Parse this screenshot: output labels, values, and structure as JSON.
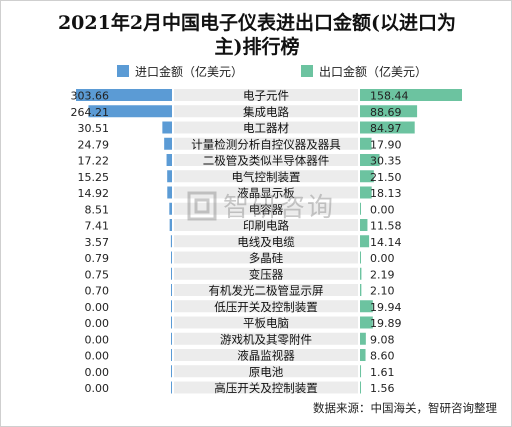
{
  "title_line1": "2021年2月中国电子仪表进出口金额(以进口为",
  "title_line2": "主)排行榜",
  "legend": {
    "import_label": "进口金额（亿美元）",
    "export_label": "出口金额（亿美元）"
  },
  "colors": {
    "import": "#5b9bd5",
    "export": "#6cc3a0",
    "category_bg": "#ececec"
  },
  "watermark_text": "智研咨询",
  "watermark_icon": "zhiyan-logo-icon",
  "source": "数据来源：中国海关，智研咨询整理",
  "chart_data": {
    "type": "bar",
    "title": "2021年2月中国电子仪表进出口金额(以进口为主)排行榜",
    "categories": [
      "电子元件",
      "集成电路",
      "电工器材",
      "计量检测分析自控仪器及器具",
      "二极管及类似半导体器件",
      "电气控制装置",
      "液晶显示板",
      "电容器",
      "印刷电路",
      "电线及电缆",
      "多晶硅",
      "变压器",
      "有机发光二极管显示屏",
      "低压开关及控制装置",
      "平板电脑",
      "游戏机及其零附件",
      "液晶监视器",
      "原电池",
      "高压开关及控制装置"
    ],
    "series": [
      {
        "name": "进口金额（亿美元）",
        "values": [
          303.66,
          264.21,
          30.51,
          24.79,
          17.22,
          15.25,
          14.92,
          8.51,
          7.41,
          3.57,
          0.79,
          0.75,
          0.7,
          0.0,
          0.0,
          0.0,
          0.0,
          0.0,
          0.0
        ]
      },
      {
        "name": "出口金额（亿美元）",
        "values": [
          158.44,
          88.69,
          84.97,
          17.9,
          30.35,
          21.5,
          18.13,
          0.0,
          11.58,
          14.14,
          0.0,
          2.19,
          2.1,
          19.94,
          19.89,
          9.08,
          8.6,
          1.61,
          1.56
        ]
      }
    ],
    "value_labels": {
      "import": [
        "303.66",
        "264.21",
        "30.51",
        "24.79",
        "17.22",
        "15.25",
        "14.92",
        "8.51",
        "7.41",
        "3.57",
        "0.79",
        "0.75",
        "0.70",
        "0.00",
        "0.00",
        "0.00",
        "0.00",
        "0.00",
        "0.00"
      ],
      "export": [
        "158.44",
        "88.69",
        "84.97",
        "17.90",
        "30.35",
        "21.50",
        "18.13",
        "0.00",
        "11.58",
        "14.14",
        "0.00",
        "2.19",
        "2.10",
        "19.94",
        "19.89",
        "9.08",
        "8.60",
        "1.61",
        "1.56"
      ]
    },
    "layout": "diverging-horizontal",
    "legend_position": "top",
    "grid": false
  }
}
